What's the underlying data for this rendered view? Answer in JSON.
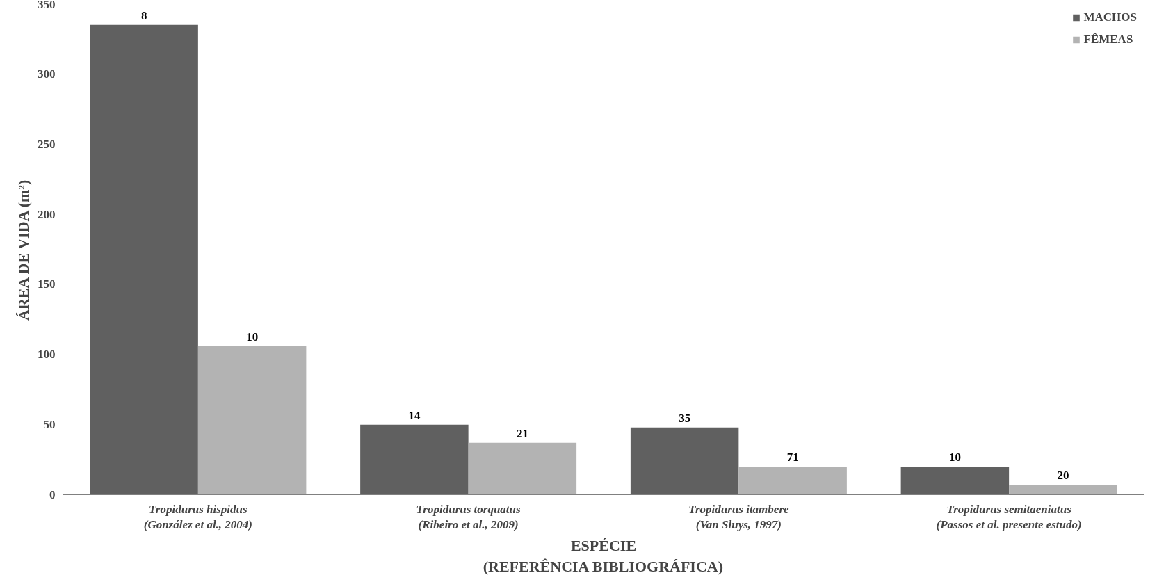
{
  "chart_data": {
    "type": "bar",
    "xlabel": "ESPÉCIE\n(REFERÊNCIA BIBLIOGRÁFICA)",
    "ylabel": "ÁREA DE VIDA (m²)",
    "categories": [
      "Tropidurus hispidus\n(González et al., 2004)",
      "Tropidurus torquatus\n(Ribeiro et al., 2009)",
      "Tropidurus itambere\n(Van Sluys, 1997)",
      "Tropidurus semitaeniatus\n(Passos et al. presente estudo)"
    ],
    "series": [
      {
        "name": "MACHOS",
        "color": "#606060",
        "values": [
          335,
          50,
          48,
          20
        ]
      },
      {
        "name": "FÊMEAS",
        "color": "#b3b3b3",
        "values": [
          106,
          37,
          20,
          7
        ]
      }
    ],
    "annotations": [
      "8",
      "10",
      "14",
      "21",
      "35",
      "71",
      "10",
      "20"
    ],
    "ylim": [
      0,
      350
    ],
    "yticks": [
      0,
      50,
      100,
      150,
      200,
      250,
      300,
      350
    ],
    "grid": false,
    "legend": "top right"
  }
}
